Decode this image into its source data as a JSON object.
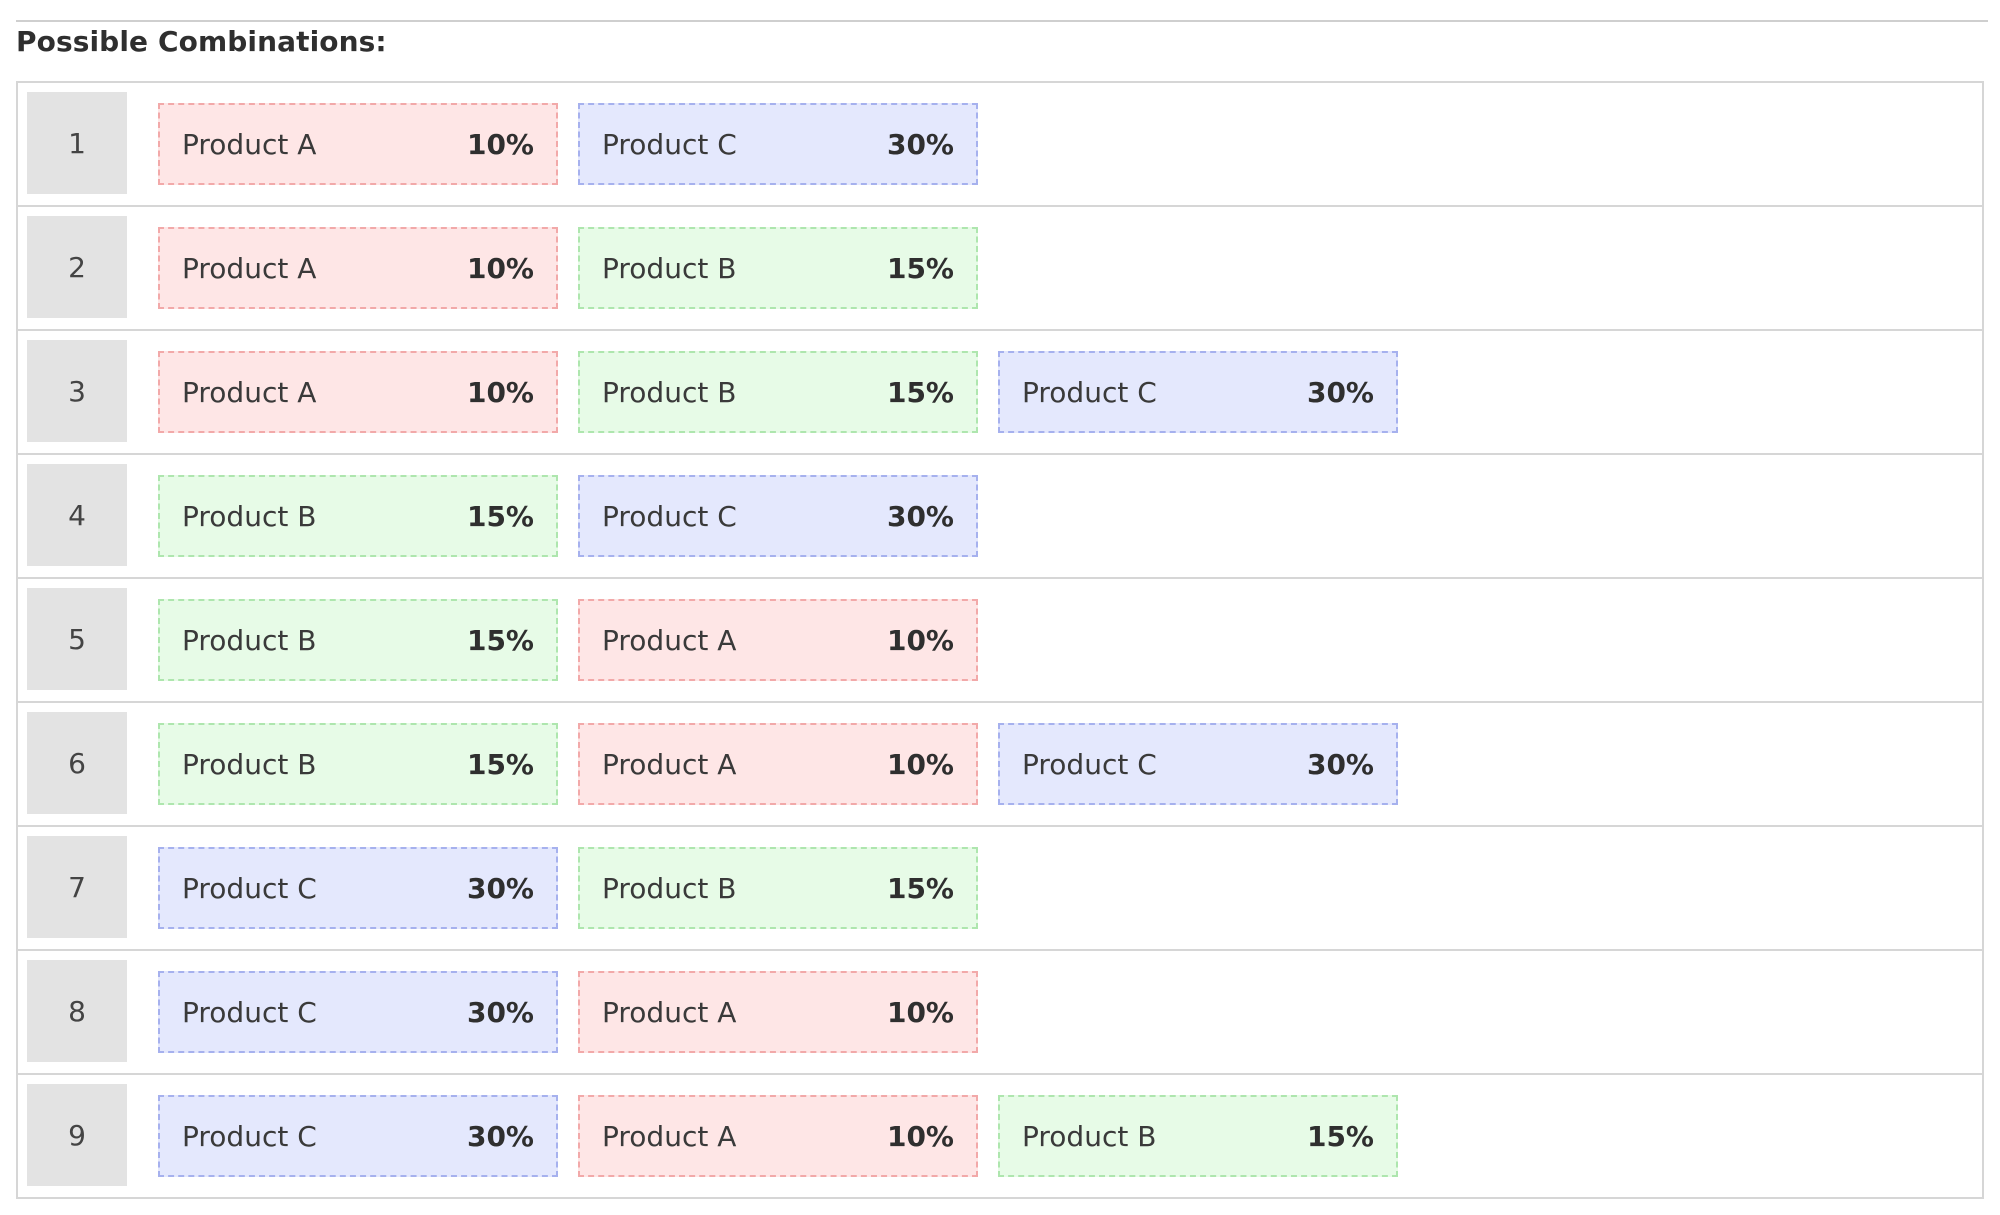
{
  "heading": "Possible Combinations:",
  "products": {
    "a": {
      "label": "Product A",
      "pct": "10%",
      "bg": "#fee6e6",
      "border": "#f2a9a9"
    },
    "b": {
      "label": "Product B",
      "pct": "15%",
      "bg": "#e7fbe7",
      "border": "#aee6ae"
    },
    "c": {
      "label": "Product C",
      "pct": "30%",
      "bg": "#e4e8fd",
      "border": "#a6b1ee"
    }
  },
  "rows": [
    {
      "num": "1",
      "items": [
        {
          "key": "a",
          "label": "Product A",
          "pct": "10%"
        },
        {
          "key": "c",
          "label": "Product C",
          "pct": "30%"
        }
      ]
    },
    {
      "num": "2",
      "items": [
        {
          "key": "a",
          "label": "Product A",
          "pct": "10%"
        },
        {
          "key": "b",
          "label": "Product B",
          "pct": "15%"
        }
      ]
    },
    {
      "num": "3",
      "items": [
        {
          "key": "a",
          "label": "Product A",
          "pct": "10%"
        },
        {
          "key": "b",
          "label": "Product B",
          "pct": "15%"
        },
        {
          "key": "c",
          "label": "Product C",
          "pct": "30%"
        }
      ]
    },
    {
      "num": "4",
      "items": [
        {
          "key": "b",
          "label": "Product B",
          "pct": "15%"
        },
        {
          "key": "c",
          "label": "Product C",
          "pct": "30%"
        }
      ]
    },
    {
      "num": "5",
      "items": [
        {
          "key": "b",
          "label": "Product B",
          "pct": "15%"
        },
        {
          "key": "a",
          "label": "Product A",
          "pct": "10%"
        }
      ]
    },
    {
      "num": "6",
      "items": [
        {
          "key": "b",
          "label": "Product B",
          "pct": "15%"
        },
        {
          "key": "a",
          "label": "Product A",
          "pct": "10%"
        },
        {
          "key": "c",
          "label": "Product C",
          "pct": "30%"
        }
      ]
    },
    {
      "num": "7",
      "items": [
        {
          "key": "c",
          "label": "Product C",
          "pct": "30%"
        },
        {
          "key": "b",
          "label": "Product B",
          "pct": "15%"
        }
      ]
    },
    {
      "num": "8",
      "items": [
        {
          "key": "c",
          "label": "Product C",
          "pct": "30%"
        },
        {
          "key": "a",
          "label": "Product A",
          "pct": "10%"
        }
      ]
    },
    {
      "num": "9",
      "items": [
        {
          "key": "c",
          "label": "Product C",
          "pct": "30%"
        },
        {
          "key": "a",
          "label": "Product A",
          "pct": "10%"
        },
        {
          "key": "b",
          "label": "Product B",
          "pct": "15%"
        }
      ]
    }
  ]
}
